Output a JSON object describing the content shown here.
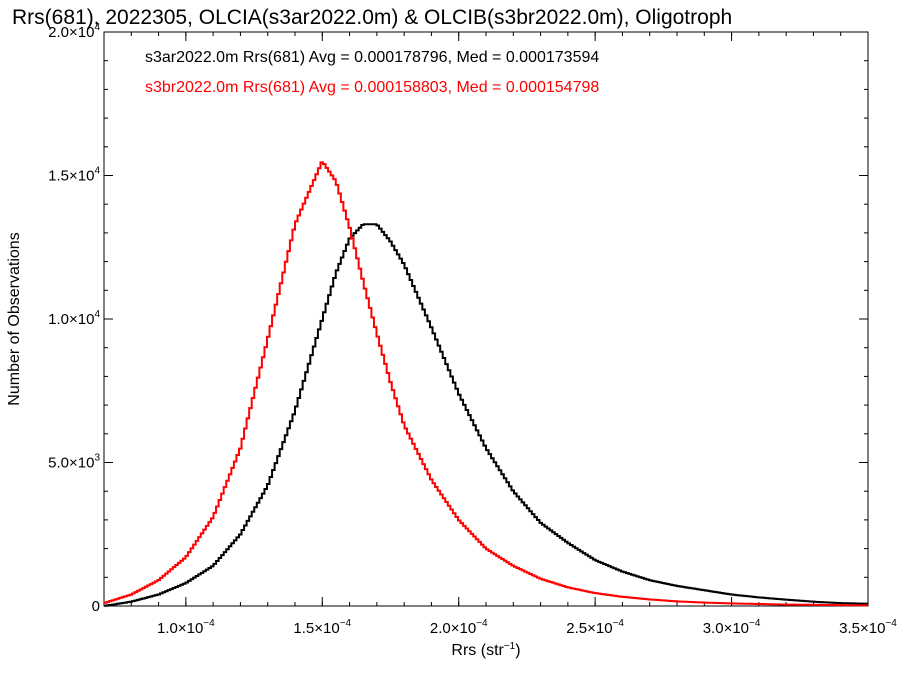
{
  "chart_data": {
    "type": "line",
    "title": "Rrs(681), 2022305, OLCIA(s3ar2022.0m) & OLCIB(s3br2022.0m), Oligotroph",
    "xlabel_main": "Rrs (str",
    "xlabel_sup": "−1",
    "xlabel_end": ")",
    "ylabel": "Number of Observations",
    "xlim": [
      7e-05,
      0.00035
    ],
    "ylim": [
      0,
      20000
    ],
    "x_ticks": [
      {
        "value": 0.0001,
        "mant": "1.0×10",
        "exp": "−4"
      },
      {
        "value": 0.00015,
        "mant": "1.5×10",
        "exp": "−4"
      },
      {
        "value": 0.0002,
        "mant": "2.0×10",
        "exp": "−4"
      },
      {
        "value": 0.00025,
        "mant": "2.5×10",
        "exp": "−4"
      },
      {
        "value": 0.0003,
        "mant": "3.0×10",
        "exp": "−4"
      },
      {
        "value": 0.00035,
        "mant": "3.5×10",
        "exp": "−4"
      }
    ],
    "y_ticks": [
      {
        "value": 0,
        "mant": "0",
        "exp": ""
      },
      {
        "value": 5000,
        "mant": "5.0×10",
        "exp": "3"
      },
      {
        "value": 10000,
        "mant": "1.0×10",
        "exp": "4"
      },
      {
        "value": 15000,
        "mant": "1.5×10",
        "exp": "4"
      },
      {
        "value": 20000,
        "mant": "2.0×10",
        "exp": "4"
      }
    ],
    "series": [
      {
        "name": "s3ar2022.0m Rrs(681) Avg = 0.000178796, Med = 0.000173594",
        "color": "#000000",
        "x": [
          7e-05,
          8e-05,
          9e-05,
          0.0001,
          0.00011,
          0.00012,
          0.00013,
          0.00014,
          0.00015,
          0.000155,
          0.00016,
          0.000165,
          0.00017,
          0.000175,
          0.00018,
          0.00019,
          0.0002,
          0.00021,
          0.00022,
          0.00023,
          0.00024,
          0.00025,
          0.00026,
          0.00027,
          0.00028,
          0.00029,
          0.0003,
          0.00031,
          0.00032,
          0.00033,
          0.00034,
          0.00035
        ],
        "y": [
          0,
          150,
          400,
          800,
          1400,
          2500,
          4200,
          6800,
          10000,
          11600,
          12800,
          13300,
          13300,
          12700,
          11900,
          9700,
          7400,
          5500,
          4000,
          2900,
          2200,
          1600,
          1200,
          900,
          700,
          550,
          400,
          300,
          220,
          150,
          100,
          80
        ]
      },
      {
        "name": "s3br2022.0m Rrs(681) Avg = 0.000158803, Med = 0.000154798",
        "color": "#ff0000",
        "x": [
          7e-05,
          8e-05,
          9e-05,
          0.0001,
          0.00011,
          0.00012,
          0.00013,
          0.00014,
          0.00015,
          0.000155,
          0.00016,
          0.000165,
          0.00017,
          0.000175,
          0.00018,
          0.00019,
          0.0002,
          0.00021,
          0.00022,
          0.00023,
          0.00024,
          0.00025,
          0.00026,
          0.00027,
          0.00028,
          0.00029,
          0.0003,
          0.00031,
          0.00032,
          0.00033,
          0.00034,
          0.00035
        ],
        "y": [
          100,
          400,
          900,
          1700,
          3100,
          5500,
          9300,
          13300,
          15500,
          14800,
          13200,
          11300,
          9500,
          7800,
          6300,
          4400,
          3000,
          2000,
          1400,
          950,
          650,
          450,
          320,
          230,
          160,
          120,
          90,
          70,
          50,
          40,
          30,
          20
        ]
      }
    ]
  }
}
